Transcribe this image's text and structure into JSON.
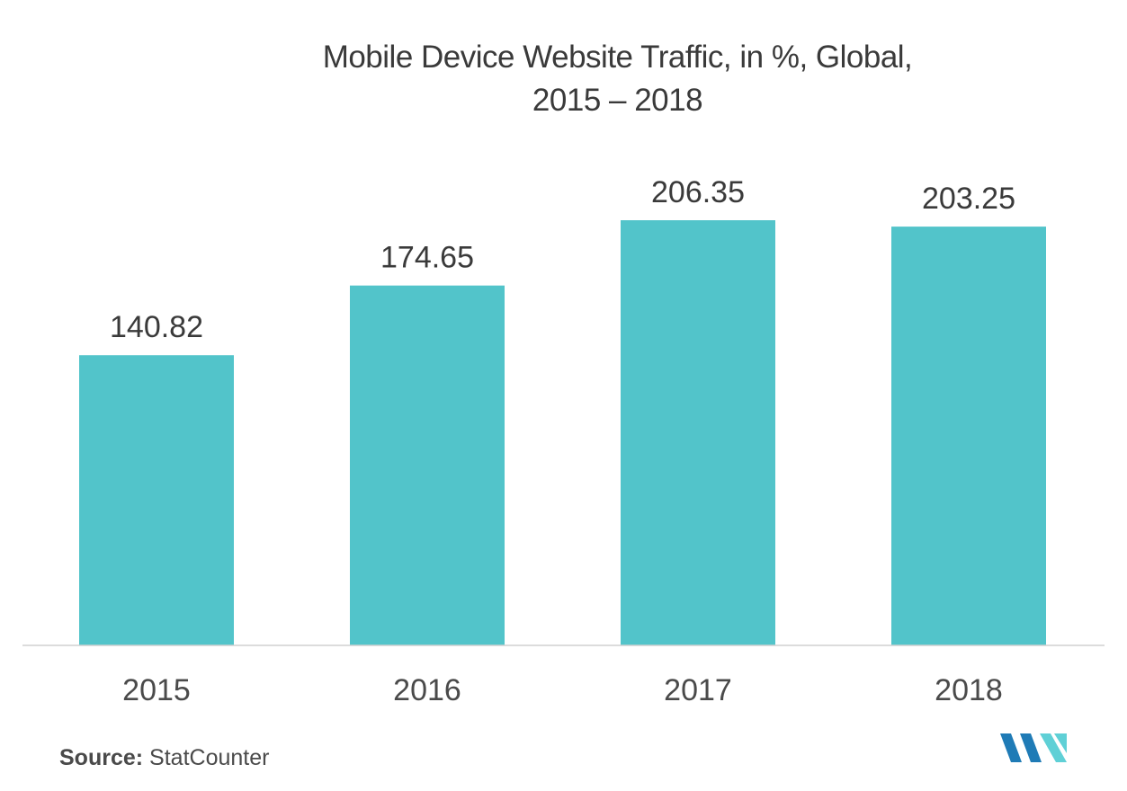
{
  "chart_data": {
    "type": "bar",
    "title": "Mobile Device Website Traffic, in %, Global,",
    "title_line2": "2015 – 2018",
    "categories": [
      "2015",
      "2016",
      "2017",
      "2018"
    ],
    "values": [
      140.82,
      174.65,
      206.35,
      203.25
    ],
    "value_labels": [
      "140.82",
      "174.65",
      "206.35",
      "203.25"
    ],
    "xlabel": "",
    "ylabel": "",
    "ylim": [
      0,
      206.35
    ],
    "grid": false,
    "bar_color": "#52C4CA",
    "axis_color": "#D0D0D0"
  },
  "source": {
    "label": "Source:",
    "text": "StatCounter"
  },
  "logo": {
    "icon": "mordor-intelligence-logo-icon",
    "colors": [
      "#1F7BB6",
      "#5FD0D6"
    ]
  }
}
